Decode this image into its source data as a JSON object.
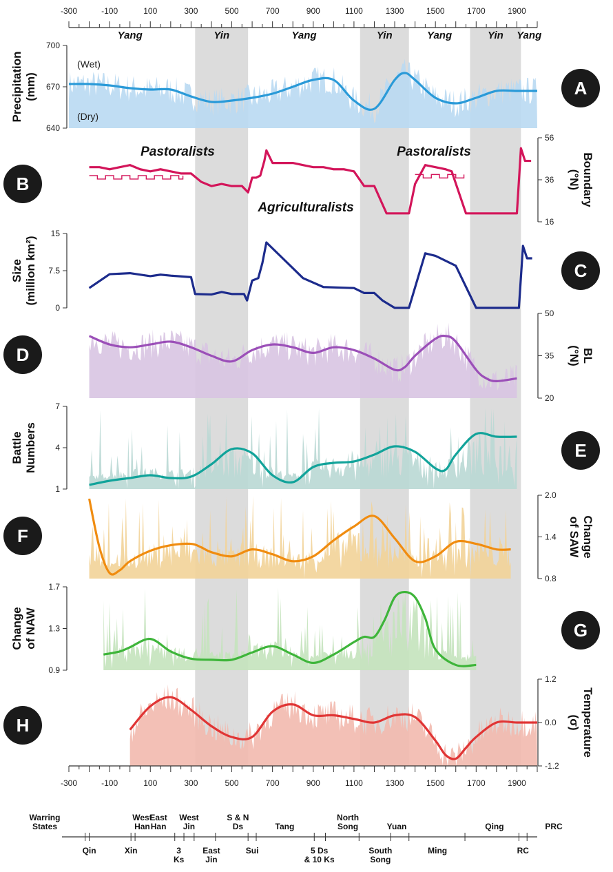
{
  "colors": {
    "yin_shade": "#dcdcdc",
    "badge": "#1a1a1a",
    "A": "#2a9ad8",
    "A_fill": "#b9d9f2",
    "B": "#d3155a",
    "C": "#1c2b8c",
    "D": "#9b4fb8",
    "D_fill": "#d8c4e2",
    "E": "#11a39a",
    "E_fill": "#b9d8d4",
    "F": "#f08c10",
    "F_fill": "#f2d398",
    "G": "#3eb53a",
    "G_fill": "#c4e3bd",
    "H": "#e03535",
    "H_fill": "#f2b9ae"
  },
  "x_axis": {
    "ticks": [
      -300,
      -100,
      100,
      300,
      500,
      700,
      900,
      1100,
      1300,
      1500,
      1700,
      1900
    ],
    "tick_labels": [
      "-300",
      "-100",
      "100",
      "300",
      "500",
      "700",
      "900",
      "1100",
      "1300",
      "1500",
      "1700",
      "1900"
    ],
    "range": [
      -300,
      2000
    ]
  },
  "yin_periods": [
    [
      320,
      580
    ],
    [
      1130,
      1370
    ],
    [
      1670,
      1920
    ]
  ],
  "phases": [
    {
      "label": "Yang",
      "x": 0
    },
    {
      "label": "Yin",
      "x": 450
    },
    {
      "label": "Yang",
      "x": 855
    },
    {
      "label": "Yin",
      "x": 1250
    },
    {
      "label": "Yang",
      "x": 1520
    },
    {
      "label": "Yin",
      "x": 1795
    },
    {
      "label": "Yang",
      "x": 1960
    }
  ],
  "chart_data": [
    {
      "id": "A",
      "type": "area",
      "ylabel": [
        "Precipitation",
        "(mm)"
      ],
      "yticks": [
        "700",
        "670",
        "640"
      ],
      "ylim": [
        640,
        700
      ],
      "annotations": [
        "(Wet)",
        "(Dry)"
      ],
      "x": [
        -300,
        -200,
        -100,
        0,
        100,
        200,
        300,
        400,
        500,
        600,
        700,
        800,
        900,
        1000,
        1100,
        1200,
        1300,
        1350,
        1400,
        1500,
        1600,
        1700,
        1800,
        1900,
        2000
      ],
      "values": [
        672,
        672,
        671,
        669,
        668,
        668,
        663,
        659,
        660,
        662,
        665,
        670,
        675,
        675,
        660,
        654,
        675,
        680,
        675,
        662,
        658,
        662,
        667,
        667,
        667
      ]
    },
    {
      "id": "B",
      "type": "line",
      "ylabel": [
        "Boundary",
        "(°N)"
      ],
      "yticks": [
        "56",
        "36",
        "16"
      ],
      "ylim": [
        16,
        56
      ],
      "annotations": [
        "Pastoralists",
        "Pastoralists",
        "Agriculturalists"
      ],
      "x": [
        -200,
        -150,
        -100,
        -50,
        0,
        50,
        100,
        150,
        200,
        250,
        300,
        350,
        400,
        450,
        500,
        550,
        580,
        600,
        620,
        640,
        660,
        670,
        700,
        750,
        800,
        850,
        900,
        950,
        1000,
        1050,
        1100,
        1150,
        1200,
        1260,
        1290,
        1330,
        1370,
        1400,
        1450,
        1500,
        1550,
        1580,
        1650,
        1700,
        1800,
        1900,
        1920,
        1940,
        1970
      ],
      "values": [
        42,
        42,
        41,
        42,
        43,
        41,
        40,
        41,
        40,
        39,
        39,
        35,
        33,
        34,
        33,
        33,
        30,
        37,
        37,
        38,
        45,
        50,
        44,
        44,
        44,
        43,
        42,
        42,
        41,
        41,
        40,
        33,
        33,
        20,
        20,
        20,
        20,
        34,
        43,
        42,
        41,
        40,
        20,
        20,
        20,
        20,
        51,
        45,
        45
      ]
    },
    {
      "id": "C",
      "type": "line",
      "ylabel": [
        "Size",
        "(million km²)"
      ],
      "yticks": [
        "15",
        "7.5",
        "0"
      ],
      "ylim": [
        0,
        15
      ],
      "x": [
        -200,
        -100,
        0,
        100,
        150,
        200,
        300,
        320,
        400,
        450,
        500,
        560,
        575,
        600,
        630,
        650,
        670,
        700,
        850,
        950,
        1100,
        1150,
        1200,
        1240,
        1300,
        1370,
        1450,
        1500,
        1600,
        1700,
        1850,
        1910,
        1930,
        1950,
        1975
      ],
      "values": [
        4.0,
        6.8,
        7.0,
        6.4,
        6.7,
        6.5,
        6.2,
        2.8,
        2.7,
        3.2,
        2.8,
        2.8,
        1.5,
        5.5,
        6.0,
        9.0,
        13.2,
        12.0,
        6.0,
        4.2,
        4.0,
        3.0,
        3.0,
        1.5,
        0,
        0,
        11.0,
        10.5,
        8.5,
        0,
        0,
        0,
        12.5,
        10.0,
        10.0
      ]
    },
    {
      "id": "D",
      "type": "area",
      "ylabel": [
        "BL",
        "(°N)"
      ],
      "yticks": [
        "50",
        "35",
        "20"
      ],
      "ylim": [
        20,
        50
      ],
      "x": [
        -200,
        -100,
        0,
        100,
        200,
        300,
        400,
        500,
        600,
        700,
        800,
        900,
        1000,
        1100,
        1200,
        1300,
        1350,
        1400,
        1500,
        1550,
        1600,
        1700,
        1750,
        1800,
        1900
      ],
      "values": [
        42,
        39,
        38,
        39,
        40,
        38,
        35,
        33,
        37,
        39,
        38,
        36,
        38,
        37,
        34,
        30,
        31,
        35,
        41,
        42,
        40,
        30,
        27,
        26,
        27
      ]
    },
    {
      "id": "E",
      "type": "area",
      "ylabel": [
        "Battle",
        "Numbers"
      ],
      "yticks": [
        "7",
        "4",
        "1"
      ],
      "ylim": [
        1,
        7
      ],
      "x": [
        -200,
        -100,
        0,
        100,
        200,
        300,
        400,
        500,
        600,
        700,
        800,
        900,
        1000,
        1100,
        1200,
        1300,
        1400,
        1500,
        1550,
        1600,
        1700,
        1800,
        1900
      ],
      "values": [
        1.3,
        1.6,
        1.8,
        2.0,
        1.8,
        1.9,
        2.8,
        3.9,
        3.6,
        2.0,
        1.5,
        2.6,
        2.9,
        3.0,
        3.5,
        4.1,
        3.7,
        2.5,
        2.4,
        3.5,
        5.0,
        4.8,
        4.8
      ]
    },
    {
      "id": "F",
      "type": "area",
      "ylabel": [
        "Change",
        "of SAW"
      ],
      "yticks": [
        "2.0",
        "1.4",
        "0.8"
      ],
      "ylim": [
        0.8,
        2.0
      ],
      "x": [
        -200,
        -150,
        -100,
        -50,
        0,
        100,
        200,
        300,
        350,
        400,
        500,
        600,
        700,
        800,
        900,
        1000,
        1100,
        1200,
        1300,
        1400,
        1500,
        1600,
        1700,
        1800,
        1870
      ],
      "values": [
        1.95,
        1.25,
        0.88,
        0.92,
        1.05,
        1.2,
        1.28,
        1.3,
        1.25,
        1.18,
        1.12,
        1.22,
        1.15,
        1.05,
        1.12,
        1.35,
        1.55,
        1.7,
        1.38,
        1.05,
        1.12,
        1.33,
        1.3,
        1.22,
        1.22
      ]
    },
    {
      "id": "G",
      "type": "area",
      "ylabel": [
        "Change",
        "of NAW"
      ],
      "yticks": [
        "1.7",
        "1.3",
        "0.9"
      ],
      "ylim": [
        0.9,
        1.7
      ],
      "x": [
        -130,
        -50,
        0,
        100,
        200,
        300,
        400,
        500,
        600,
        700,
        800,
        900,
        1000,
        1100,
        1150,
        1200,
        1250,
        1300,
        1350,
        1400,
        1450,
        1500,
        1600,
        1700
      ],
      "values": [
        1.05,
        1.08,
        1.12,
        1.2,
        1.08,
        1.01,
        1.0,
        1.0,
        1.07,
        1.13,
        1.05,
        0.97,
        1.05,
        1.17,
        1.22,
        1.22,
        1.38,
        1.6,
        1.65,
        1.6,
        1.4,
        1.1,
        0.95,
        0.95
      ]
    },
    {
      "id": "H",
      "type": "area",
      "ylabel": [
        "Temperature",
        "(σ)"
      ],
      "yticks": [
        "1.2",
        "0.0",
        "-1.2"
      ],
      "ylim": [
        -1.2,
        1.2
      ],
      "x": [
        0,
        100,
        200,
        300,
        400,
        500,
        600,
        700,
        800,
        900,
        1000,
        1100,
        1200,
        1300,
        1400,
        1500,
        1550,
        1600,
        1650,
        1700,
        1800,
        1900,
        2000
      ],
      "values": [
        -0.2,
        0.45,
        0.7,
        0.35,
        -0.1,
        -0.4,
        -0.4,
        0.3,
        0.5,
        0.2,
        0.2,
        0.1,
        0.0,
        0.2,
        0.15,
        -0.5,
        -0.9,
        -1.0,
        -0.7,
        -0.4,
        0.0,
        0.0,
        0.0
      ]
    }
  ],
  "dynasties_top": [
    {
      "label": [
        "Warring",
        "States"
      ],
      "x": -300
    },
    {
      "label": [
        "West",
        "Han"
      ],
      "x": 60
    },
    {
      "label": [
        "East",
        "Han"
      ],
      "x": 140
    },
    {
      "label": [
        "West",
        "Jin"
      ],
      "x": 290
    },
    {
      "label": [
        "S & N",
        "Ds"
      ],
      "x": 530
    },
    {
      "label": [
        "Tang"
      ],
      "x": 760
    },
    {
      "label": [
        "North",
        "Song"
      ],
      "x": 1070
    },
    {
      "label": [
        "Yuan"
      ],
      "x": 1310
    },
    {
      "label": [
        "Qing"
      ],
      "x": 1790
    },
    {
      "label": [
        "PRC"
      ],
      "x": 2010
    }
  ],
  "dynasties_bottom": [
    {
      "label": [
        "Qin"
      ],
      "x": -200
    },
    {
      "label": [
        "Xin"
      ],
      "x": 5
    },
    {
      "label": [
        "3",
        "Ks"
      ],
      "x": 240
    },
    {
      "label": [
        "East",
        "Jin"
      ],
      "x": 400
    },
    {
      "label": [
        "Sui"
      ],
      "x": 600
    },
    {
      "label": [
        "5 Ds",
        "& 10 Ks"
      ],
      "x": 930
    },
    {
      "label": [
        "South",
        "Song"
      ],
      "x": 1230
    },
    {
      "label": [
        "Ming"
      ],
      "x": 1510
    },
    {
      "label": [
        "RC"
      ],
      "x": 1930
    }
  ]
}
